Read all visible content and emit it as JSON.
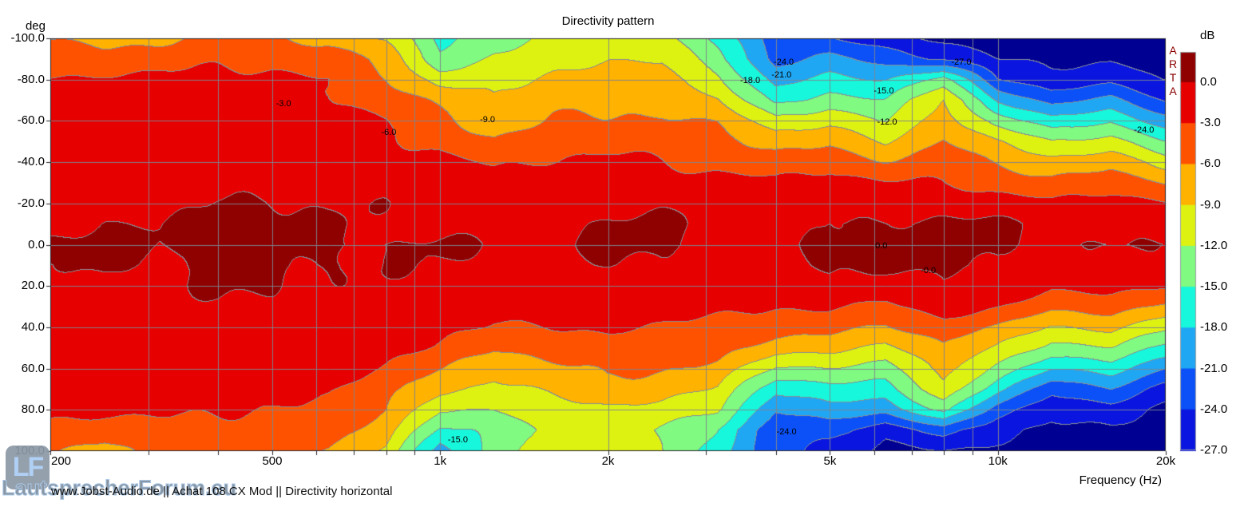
{
  "title": "Directivity pattern",
  "axes": {
    "y_unit": "deg",
    "x_label": "Frequency (Hz)",
    "x_ticks": [
      {
        "f": 200,
        "label": "200"
      },
      {
        "f": 500,
        "label": "500"
      },
      {
        "f": 1000,
        "label": "1k"
      },
      {
        "f": 2000,
        "label": "2k"
      },
      {
        "f": 5000,
        "label": "5k"
      },
      {
        "f": 10000,
        "label": "10k"
      },
      {
        "f": 20000,
        "label": "20k"
      }
    ],
    "y_ticks": [
      {
        "a": -100,
        "label": "-100.0"
      },
      {
        "a": -80,
        "label": "-80.0"
      },
      {
        "a": -60,
        "label": "-60.0"
      },
      {
        "a": -40,
        "label": "-40.0"
      },
      {
        "a": -20,
        "label": "-20.0"
      },
      {
        "a": 0,
        "label": "0.0"
      },
      {
        "a": 20,
        "label": "20.0"
      },
      {
        "a": 40,
        "label": "40.0"
      },
      {
        "a": 60,
        "label": "60.0"
      },
      {
        "a": 80,
        "label": "80.0"
      },
      {
        "a": 100,
        "label": "100.0"
      }
    ],
    "grid_freqs": [
      300,
      400,
      500,
      600,
      700,
      800,
      900,
      1000,
      2000,
      3000,
      4000,
      5000,
      6000,
      7000,
      8000,
      9000,
      10000
    ],
    "grid_angles": [
      -80,
      -60,
      -40,
      -20,
      0,
      20,
      40,
      60,
      80
    ]
  },
  "legend": {
    "unit": "dB",
    "brand": "ARTA",
    "levels": [
      "0.0",
      "-3.0",
      "-6.0",
      "-9.0",
      "-12.0",
      "-15.0",
      "-18.0",
      "-21.0",
      "-24.0",
      "-27.0"
    ]
  },
  "footer": {
    "text": "www.Jobst-Audio.de  ||  Achat  108 CX Mod  || Directivity horizontal"
  },
  "watermark": {
    "logo_text": "LF",
    "text": "LautsprecherForum.eu"
  },
  "chart_data": {
    "type": "heatmap",
    "title": "Directivity pattern",
    "xlabel": "Frequency (Hz)",
    "ylabel": "deg",
    "x_scale": "log",
    "x_range": [
      200,
      20000
    ],
    "y_range": [
      -100,
      100
    ],
    "grid_on": true,
    "legend_position": "right",
    "contour_step_db": 3,
    "levels_db": [
      0,
      -3,
      -6,
      -9,
      -12,
      -15,
      -18,
      -21,
      -24,
      -27
    ],
    "band_colors": [
      "#8f0000",
      "#e60000",
      "#ff5200",
      "#ffb200",
      "#def211",
      "#80fa80",
      "#17f7db",
      "#1fa7f4",
      "#0b51f7",
      "#0a16df",
      "#000092"
    ],
    "contour_line_color": "#868e96",
    "freqs": [
      200,
      250,
      315,
      400,
      500,
      630,
      800,
      1000,
      1250,
      1600,
      2000,
      2500,
      3150,
      4000,
      5000,
      6300,
      8000,
      10000,
      12500,
      16000,
      20000
    ],
    "angles": [
      -100,
      -90,
      -80,
      -70,
      -60,
      -50,
      -40,
      -30,
      -20,
      -10,
      0,
      10,
      20,
      30,
      40,
      50,
      60,
      70,
      80,
      90,
      100
    ],
    "values_db": [
      [
        -6.5,
        -7,
        -6.5,
        -4.5,
        -5.5,
        -7,
        -9.5,
        -16,
        -13,
        -11.5,
        -10,
        -10.5,
        -16,
        -23,
        -24,
        -26,
        -27.5,
        -28,
        -28.5,
        -28.5,
        -29
      ],
      [
        -4,
        -4.5,
        -4,
        -3.5,
        -4,
        -4.5,
        -7,
        -14,
        -11.5,
        -10,
        -9,
        -9.5,
        -14,
        -22,
        -20,
        -22,
        -24,
        -27,
        -28,
        -27.5,
        -28.5
      ],
      [
        -2.5,
        -2.5,
        -2.5,
        -2.5,
        -2.5,
        -3,
        -5.5,
        -10,
        -10,
        -8.5,
        -7.5,
        -8,
        -11,
        -19,
        -17,
        -18,
        -14,
        -24,
        -26,
        -25,
        -27
      ],
      [
        -2,
        -2,
        -2,
        -2,
        -2,
        -2.5,
        -4,
        -7,
        -9,
        -7,
        -6.5,
        -6.5,
        -8.5,
        -16,
        -14,
        -15,
        -9,
        -18,
        -22,
        -20,
        -24
      ],
      [
        -1.5,
        -1.5,
        -1.5,
        -1.5,
        -2,
        -2,
        -3.2,
        -5,
        -8,
        -5.5,
        -5.5,
        -5.5,
        -6.5,
        -11,
        -10,
        -12.2,
        -7,
        -13,
        -17,
        -15.5,
        -20
      ],
      [
        -1.5,
        -1.5,
        -1.5,
        -1.5,
        -1.5,
        -1.5,
        -2.5,
        -3.5,
        -5.5,
        -4,
        -4,
        -4.5,
        -5,
        -7,
        -6.5,
        -9,
        -5.5,
        -9,
        -12,
        -11,
        -15
      ],
      [
        -1.5,
        -1,
        -1,
        -1,
        -1,
        -1,
        -1.5,
        -2,
        -3.5,
        -3,
        -2.5,
        -3,
        -3.5,
        -4.5,
        -4,
        -6,
        -4.5,
        -6.5,
        -8,
        -7,
        -10
      ],
      [
        -1,
        -1,
        -1,
        -0.5,
        -0.5,
        -1,
        -1,
        -1.5,
        -2,
        -1.5,
        -1.5,
        -1.5,
        -2,
        -2.5,
        -2,
        -3,
        -3,
        -4,
        -5,
        -4,
        -6
      ],
      [
        -1,
        -0.5,
        -0.5,
        0.2,
        0.1,
        -0.5,
        -0.5,
        -1,
        -1,
        -1,
        -0.8,
        -0.5,
        -1,
        -1.5,
        -0.5,
        -1,
        -0.5,
        -1.5,
        -2.5,
        -2,
        -3
      ],
      [
        -0.5,
        0.3,
        -0.2,
        0.5,
        0.4,
        0.1,
        -0.3,
        -0.5,
        -0.5,
        -0.5,
        0.1,
        0.2,
        -0.5,
        -1,
        0.2,
        0.3,
        0.4,
        0.2,
        -0.8,
        -0.3,
        -1
      ],
      [
        0.5,
        0.7,
        -0.2,
        0.6,
        0.5,
        0.4,
        0.2,
        0.2,
        -0.3,
        -0.3,
        0.4,
        0.5,
        -0.3,
        -0.8,
        0.5,
        0.6,
        0.6,
        0.4,
        -0.5,
        0.2,
        0.2
      ],
      [
        -0.5,
        0.3,
        -0.2,
        0.5,
        0.4,
        0.1,
        -0.3,
        -0.5,
        -0.5,
        -0.5,
        0.1,
        0.2,
        -0.5,
        -1,
        0.2,
        0.3,
        0.5,
        0.3,
        -0.8,
        -0.3,
        -0.3
      ],
      [
        -1,
        -0.5,
        -0.5,
        0.3,
        0.1,
        -0.5,
        -0.5,
        -1,
        -1,
        -1,
        -0.8,
        -0.5,
        -1,
        -1.5,
        -0.5,
        -1,
        0.2,
        -1,
        -2.5,
        -2,
        -3
      ],
      [
        -1,
        -1,
        -1,
        -0.5,
        -0.5,
        -1,
        -1,
        -1.5,
        -2,
        -1.5,
        -1.5,
        -1.5,
        -2,
        -2.5,
        -2.5,
        -3.5,
        -1.5,
        -3,
        -5,
        -4.5,
        -6.5
      ],
      [
        -1.5,
        -1.5,
        -1.5,
        -1,
        -1,
        -1,
        -1.5,
        -2.5,
        -3.5,
        -3,
        -2.5,
        -3,
        -3.5,
        -4.5,
        -5,
        -6.5,
        -4.5,
        -6,
        -9,
        -8,
        -11
      ],
      [
        -1.5,
        -1.5,
        -1.5,
        -1.5,
        -1.5,
        -1.5,
        -2.5,
        -3.5,
        -5.5,
        -4.5,
        -4,
        -4.5,
        -5,
        -7.5,
        -8,
        -10,
        -6,
        -9,
        -13,
        -12,
        -16
      ],
      [
        -1.5,
        -1.5,
        -1.5,
        -1.5,
        -2,
        -2,
        -3.2,
        -5.5,
        -8,
        -6.5,
        -5.5,
        -6,
        -7,
        -12,
        -12,
        -13,
        -7.5,
        -13,
        -18,
        -16.5,
        -21
      ],
      [
        -2,
        -2,
        -2,
        -2,
        -2,
        -2.5,
        -4.5,
        -8,
        -10,
        -8.5,
        -7,
        -7.5,
        -9,
        -17,
        -16,
        -16,
        -10,
        -17,
        -23,
        -21,
        -25
      ],
      [
        -2.5,
        -2.5,
        -2.5,
        -2.5,
        -3,
        -3.5,
        -6,
        -12,
        -12,
        -10.5,
        -9.5,
        -9.5,
        -11.5,
        -21,
        -19,
        -20,
        -14,
        -22,
        -26,
        -25,
        -27.5
      ],
      [
        -4,
        -4.5,
        -3.5,
        -3.5,
        -4,
        -4.5,
        -8,
        -15.5,
        -14,
        -11,
        -9.5,
        -12.5,
        -15.5,
        -23.5,
        -23,
        -26,
        -22,
        -26,
        -28,
        -27.5,
        -28.5
      ],
      [
        -5.5,
        -6.5,
        -5,
        -4.5,
        -5.5,
        -6.5,
        -9.5,
        -19,
        -13.5,
        -10.5,
        -9.5,
        -12.5,
        -16.5,
        -23,
        -25,
        -27.5,
        -27,
        -28,
        -28.5,
        -28.5,
        -29
      ]
    ],
    "contour_labels": [
      {
        "f": 524,
        "a": -68,
        "text": "-3.0"
      },
      {
        "f": 809,
        "a": -54,
        "text": "-6.0"
      },
      {
        "f": 1216,
        "a": -60,
        "text": "-9.0"
      },
      {
        "f": 3597,
        "a": -79,
        "text": "-18.0"
      },
      {
        "f": 4132,
        "a": -88,
        "text": "-24.0"
      },
      {
        "f": 4093,
        "a": -82,
        "text": "-21.0"
      },
      {
        "f": 6245,
        "a": -74,
        "text": "-15.0"
      },
      {
        "f": 6330,
        "a": -59,
        "text": "-12.0"
      },
      {
        "f": 8598,
        "a": -88,
        "text": "-27.0"
      },
      {
        "f": 18290,
        "a": -55,
        "text": "-24.0"
      },
      {
        "f": 6180,
        "a": 1,
        "text": "0.0"
      },
      {
        "f": 7506,
        "a": 13,
        "text": "-0.0"
      },
      {
        "f": 1076,
        "a": 95,
        "text": "-15.0"
      },
      {
        "f": 4180,
        "a": 91,
        "text": "-24.0"
      }
    ]
  }
}
